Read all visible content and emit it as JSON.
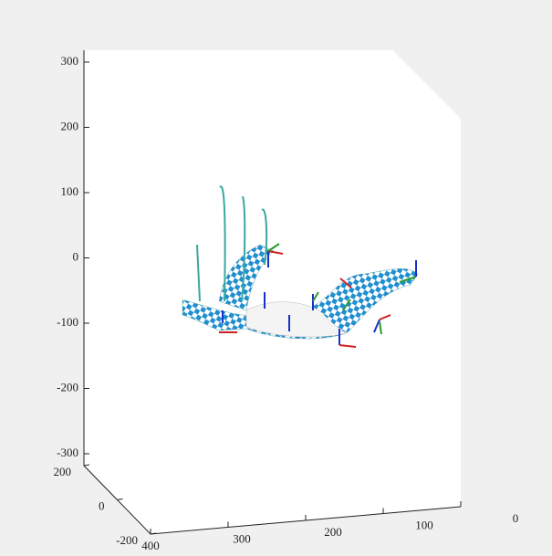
{
  "chart_data": {
    "type": "plot3d",
    "zlim": [
      -300,
      300
    ],
    "zticks": [
      300,
      200,
      100,
      0,
      -100,
      -200,
      -300
    ],
    "ylim": [
      -200,
      200
    ],
    "yticks": [
      200,
      0,
      -200
    ],
    "xlim": [
      0,
      400
    ],
    "xticks": [
      400,
      300,
      200,
      100,
      0
    ]
  }
}
